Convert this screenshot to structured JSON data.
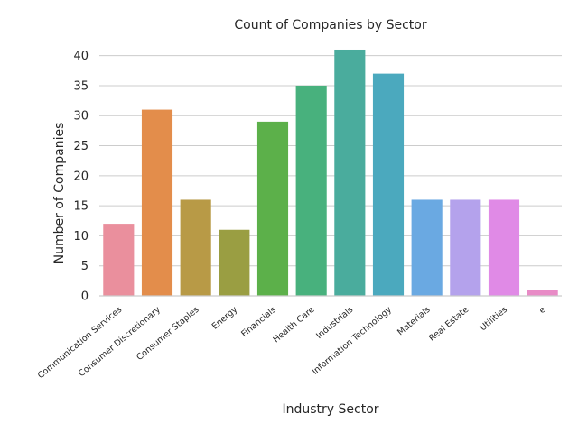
{
  "chart_data": {
    "type": "bar",
    "title": "Count of Companies by Sector",
    "xlabel": "Industry Sector",
    "ylabel": "Number of Companies",
    "ylim": [
      0,
      42.5
    ],
    "yticks": [
      0,
      5,
      10,
      15,
      20,
      25,
      30,
      35,
      40
    ],
    "grid": "horizontal",
    "categories": [
      "Communication Services",
      "Consumer Discretionary",
      "Consumer Staples",
      "Energy",
      "Financials",
      "Health Care",
      "Industrials",
      "Information Technology",
      "Materials",
      "Real Estate",
      "Utilities",
      "e"
    ],
    "values": [
      12,
      31,
      16,
      11,
      29,
      35,
      41,
      37,
      16,
      16,
      16,
      1
    ],
    "colors": [
      "#ea8f9d",
      "#e38d4b",
      "#b89a46",
      "#9a9e42",
      "#5cb04a",
      "#48b17d",
      "#4aac9d",
      "#4ba9be",
      "#6aa9e2",
      "#b4a2ec",
      "#e08ae6",
      "#e88bc6"
    ]
  }
}
